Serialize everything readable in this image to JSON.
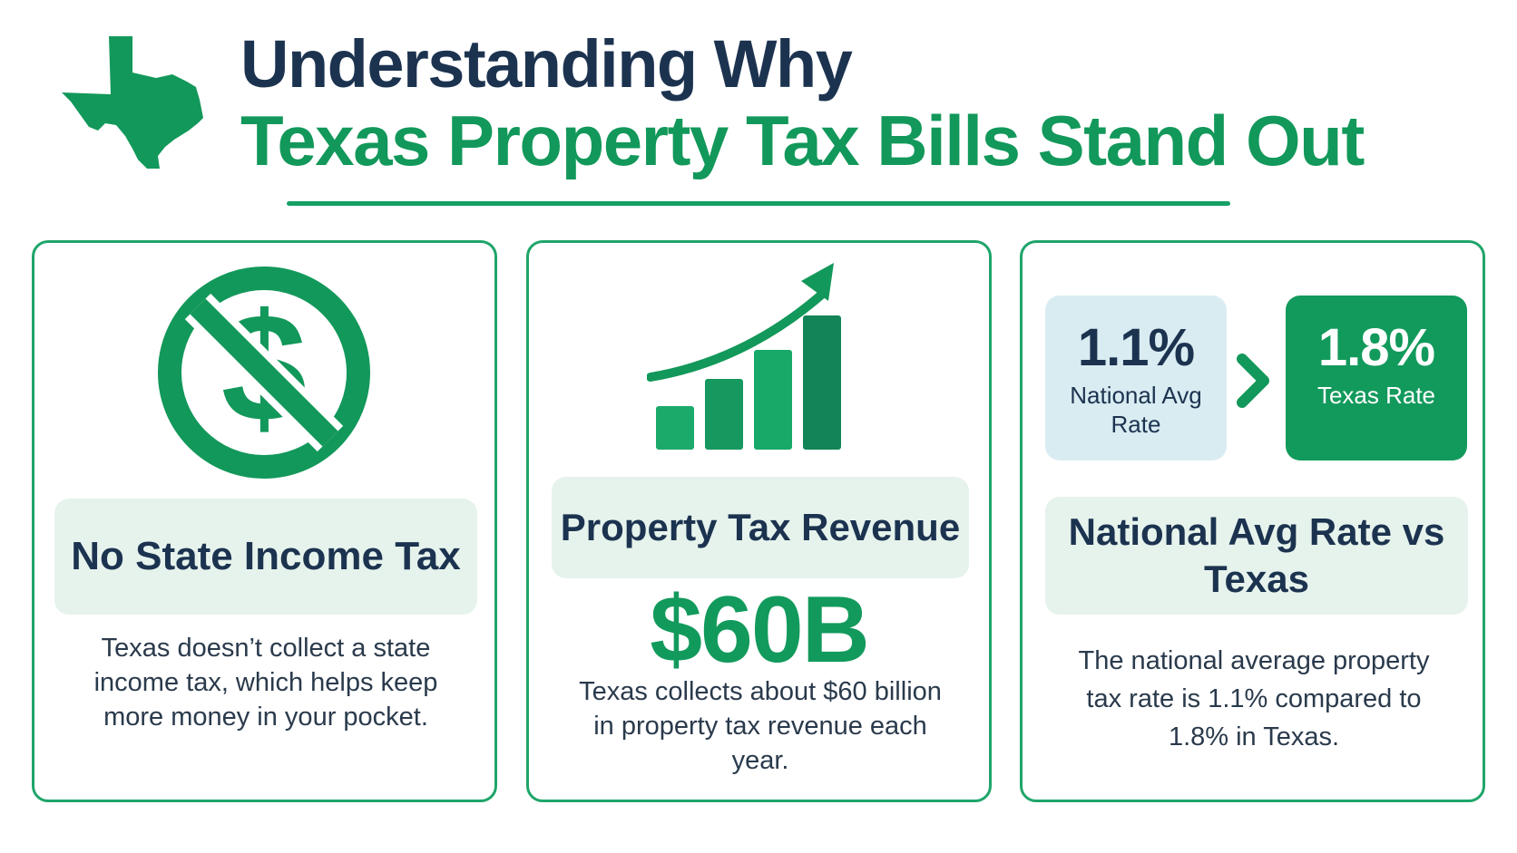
{
  "header": {
    "title_line1": "Understanding Why",
    "title_line2": "Texas Property Tax Bills Stand Out",
    "logo_icon": "texas-map-icon"
  },
  "cards": [
    {
      "icon": "no-dollar-icon",
      "heading": "No State Income Tax",
      "body": "Texas doesn’t collect a state income tax, which helps keep more money in your pocket."
    },
    {
      "icon": "growth-chart-icon",
      "heading": "Property Tax Revenue",
      "big_value": "$60B",
      "body": "Texas collects about $60 billion in property tax revenue each year."
    },
    {
      "national_rate": {
        "value": "1.1%",
        "label": "National Avg Rate"
      },
      "texas_rate": {
        "value": "1.8%",
        "label": "Texas Rate"
      },
      "comparison_icon": "chevron-right-icon",
      "heading": "National Avg Rate vs Texas",
      "body": "The national average property tax rate is 1.1% compared to 1.8% in Texas."
    }
  ],
  "colors": {
    "brand_green": "#12985a",
    "navy": "#1c3350",
    "pill_bg": "#e6f3ec",
    "national_box_bg": "#d9ecf2"
  }
}
